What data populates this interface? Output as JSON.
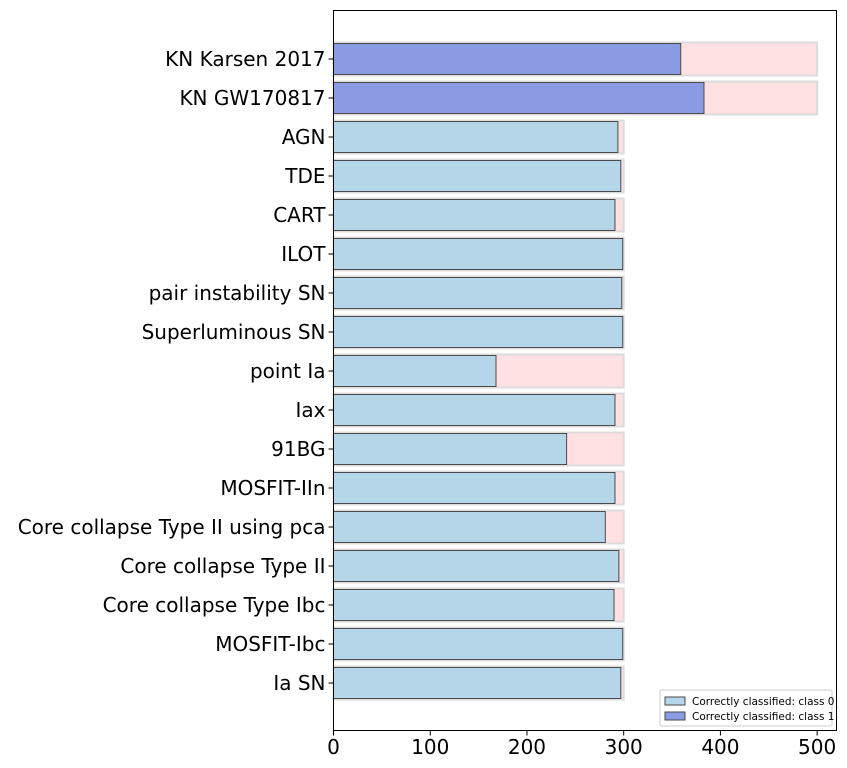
{
  "chart_data": {
    "type": "bar",
    "orientation": "horizontal",
    "title": "",
    "xlabel": "",
    "ylabel": "",
    "xlim": [
      0,
      520
    ],
    "xticks": [
      0,
      100,
      200,
      300,
      400,
      500
    ],
    "grid": false,
    "legend_position": "lower-right",
    "categories": [
      "KN Karsen 2017",
      "KN GW170817",
      "AGN",
      "TDE",
      "CART",
      "ILOT",
      "pair instability SN",
      "Superluminous SN",
      "point Ia",
      "Iax",
      "91BG",
      "MOSFIT-IIn",
      "Core collapse Type II using pca",
      "Core collapse Type II",
      "Core collapse Type Ibc",
      "MOSFIT-Ibc",
      "Ia SN"
    ],
    "series": [
      {
        "name": "Correctly classified: class 0",
        "color": "#b5d6e8",
        "values": [
          null,
          null,
          294,
          297,
          291,
          299,
          298,
          299,
          168,
          291,
          241,
          291,
          281,
          295,
          290,
          299,
          297
        ]
      },
      {
        "name": "Correctly classified: class 1",
        "color": "#8a9be3",
        "values": [
          359,
          383,
          null,
          null,
          null,
          null,
          null,
          null,
          null,
          null,
          null,
          null,
          null,
          null,
          null,
          null,
          null
        ]
      }
    ],
    "totals": {
      "color": "#ffe0e3",
      "values": [
        500,
        500,
        300,
        300,
        300,
        300,
        300,
        300,
        300,
        300,
        300,
        300,
        300,
        300,
        300,
        300,
        300
      ]
    }
  }
}
